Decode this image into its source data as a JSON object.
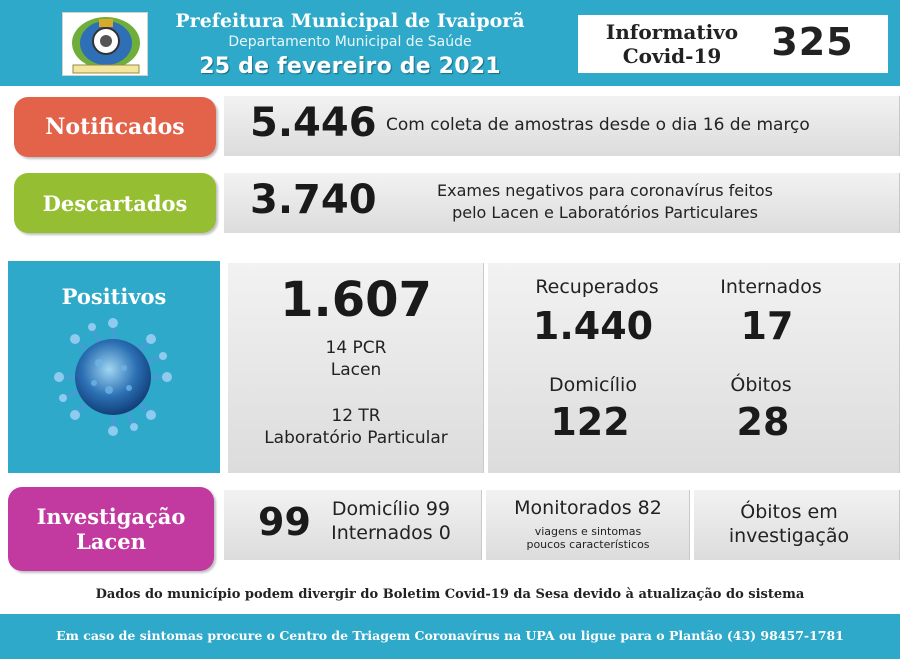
{
  "header": {
    "prefeitura": "Prefeitura Municipal de Ivaiporã",
    "departamento": "Departamento Municipal de Saúde",
    "date": "25 de fevereiro de 2021",
    "informativo_line1": "Informativo",
    "informativo_line2": "Covid-19",
    "number": "325",
    "logo_icon": "municipal-coat-of-arms"
  },
  "notificados": {
    "label": "Notificados",
    "value": "5.446",
    "description": "Com coleta de amostras desde o dia 16 de março"
  },
  "descartados": {
    "label": "Descartados",
    "value": "3.740",
    "description_line1": "Exames negativos para coronavírus feitos",
    "description_line2": "pelo Lacen e Laboratórios Particulares"
  },
  "positivos": {
    "label": "Positivos",
    "image_icon": "coronavirus-icon",
    "value": "1.607",
    "pcr": "14 PCR",
    "pcr_source": "Lacen",
    "tr": "12 TR",
    "tr_source": "Laboratório Particular",
    "recuperados_label": "Recuperados",
    "recuperados_value": "1.440",
    "internados_label": "Internados",
    "internados_value": "17",
    "domicilio_label": "Domicílio",
    "domicilio_value": "122",
    "obitos_label": "Óbitos",
    "obitos_value": "28"
  },
  "investigacao": {
    "label_line1": "Investigação",
    "label_line2": "Lacen",
    "value": "99",
    "domicilio": "Domicílio 99",
    "internados": "Internados 0",
    "monitorados": "Monitorados 82",
    "monitorados_sub_line1": "viagens e sintomas",
    "monitorados_sub_line2": "poucos característicos",
    "obitos_line1": "Óbitos em",
    "obitos_line2": "investigação"
  },
  "footer": {
    "disclaimer": "Dados do município podem divergir do Boletim Covid-19 da Sesa devido à atualização do sistema",
    "contact": "Em caso de sintomas procure o Centro de Triagem Coronavírus na UPA ou ligue para o Plantão (43) 98457-1781"
  },
  "colors": {
    "header_blue": "#2fa9c9",
    "notificados": "#e2624a",
    "descartados": "#96be32",
    "investigacao": "#c23a9f"
  }
}
